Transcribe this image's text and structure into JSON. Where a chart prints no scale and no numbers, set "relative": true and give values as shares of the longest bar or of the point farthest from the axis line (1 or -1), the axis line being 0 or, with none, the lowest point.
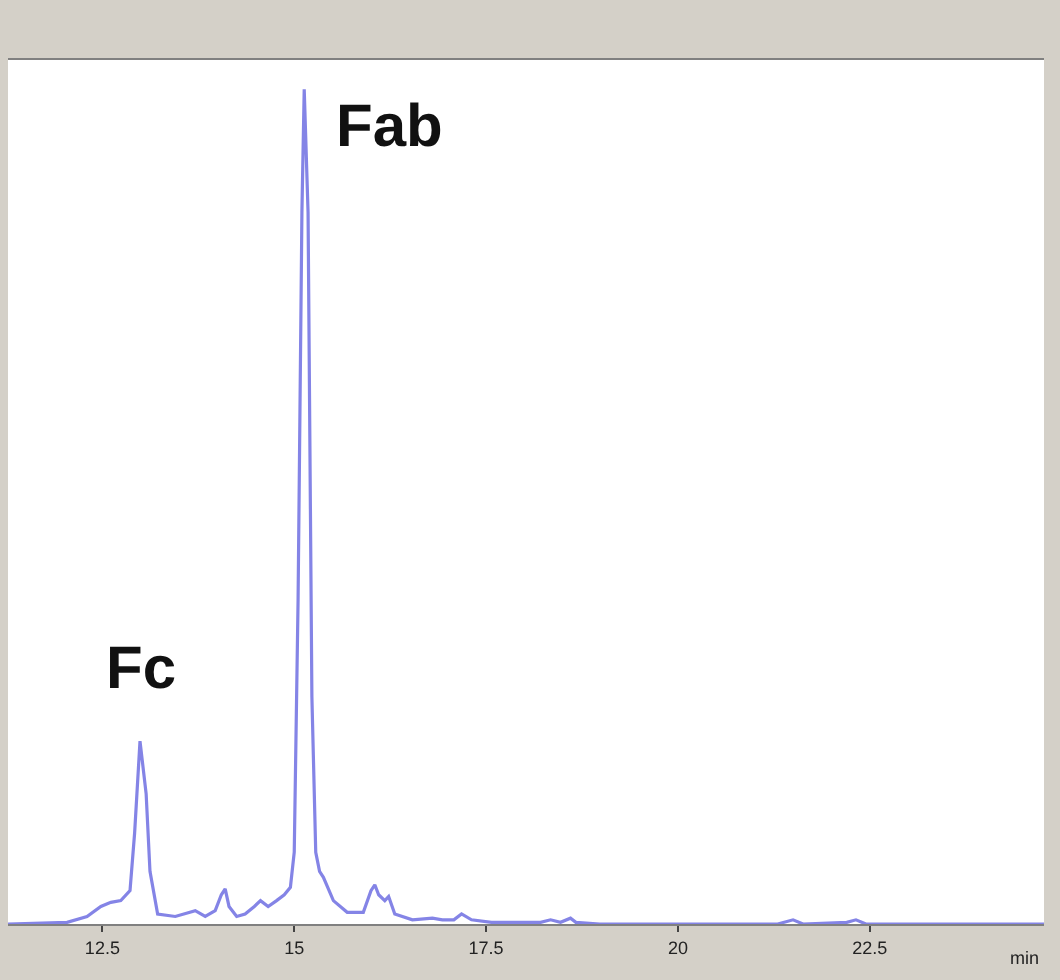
{
  "chart_data": {
    "type": "line",
    "relative": true,
    "xlabel": "min",
    "x": [
      11.27,
      12.04,
      12.3,
      12.48,
      12.61,
      12.74,
      12.86,
      12.92,
      12.99,
      13.07,
      13.12,
      13.22,
      13.45,
      13.71,
      13.84,
      13.97,
      14.05,
      14.1,
      14.15,
      14.25,
      14.36,
      14.48,
      14.56,
      14.66,
      14.77,
      14.87,
      14.95,
      15.0,
      15.05,
      15.1,
      15.13,
      15.18,
      15.23,
      15.28,
      15.33,
      15.38,
      15.51,
      15.69,
      15.9,
      16.0,
      16.05,
      16.1,
      16.18,
      16.23,
      16.31,
      16.54,
      16.8,
      16.93,
      17.08,
      17.18,
      17.31,
      17.57,
      18.21,
      18.34,
      18.47,
      18.6,
      18.67,
      18.98,
      21.3,
      21.5,
      21.63,
      22.2,
      22.32,
      22.45,
      24.77
    ],
    "series": [
      {
        "color": "#8484e6",
        "values": [
          0,
          0.002,
          0.009,
          0.021,
          0.026,
          0.028,
          0.04,
          0.109,
          0.219,
          0.156,
          0.063,
          0.012,
          0.009,
          0.016,
          0.009,
          0.016,
          0.035,
          0.042,
          0.021,
          0.009,
          0.012,
          0.021,
          0.028,
          0.021,
          0.028,
          0.035,
          0.044,
          0.086,
          0.388,
          0.853,
          1,
          0.853,
          0.272,
          0.086,
          0.063,
          0.056,
          0.028,
          0.014,
          0.014,
          0.04,
          0.047,
          0.035,
          0.028,
          0.033,
          0.012,
          0.005,
          0.007,
          0.005,
          0.005,
          0.012,
          0.005,
          0.002,
          0.002,
          0.005,
          0.002,
          0.007,
          0.002,
          0,
          0,
          0.005,
          0,
          0.002,
          0.005,
          0,
          0
        ]
      }
    ],
    "xlim": [
      11.27,
      24.77
    ],
    "xticks": [
      12.5,
      15,
      17.5,
      20,
      22.5
    ],
    "annotations": [
      {
        "text": "Fc",
        "x": 12.99,
        "y": 0.219
      },
      {
        "text": "Fab",
        "x": 15.13,
        "y": 1
      }
    ],
    "marker": "none",
    "line_style": "solid"
  }
}
